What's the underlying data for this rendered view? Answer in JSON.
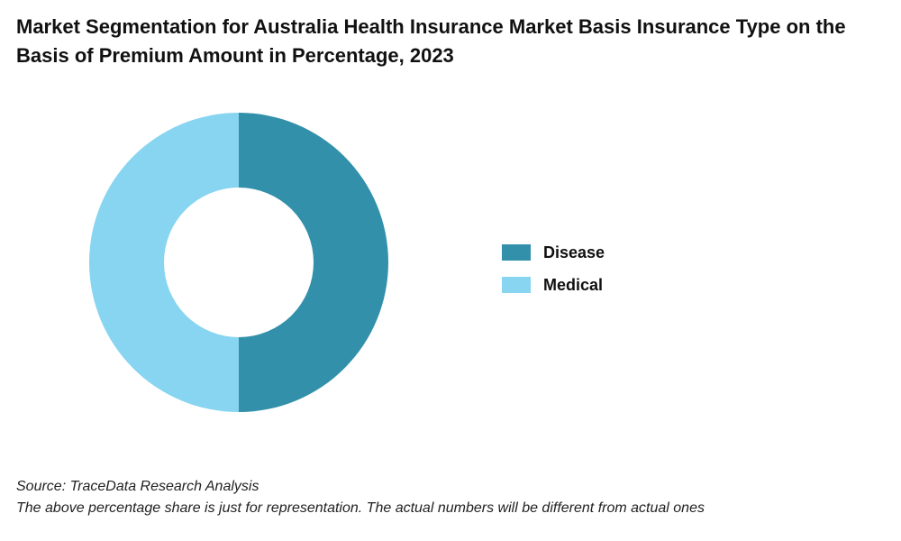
{
  "chart_data": {
    "type": "pie",
    "variant": "donut",
    "title": "Market Segmentation for Australia Health Insurance Market Basis Insurance Type on the Basis of Premium Amount in Percentage, 2023",
    "categories": [
      "Disease",
      "Medical"
    ],
    "values": [
      50,
      50
    ],
    "colors": [
      "#3290AA",
      "#87D5F0"
    ],
    "legend_position": "right"
  },
  "notes": {
    "source": "Source: TraceData Research Analysis",
    "disclaimer": "The above percentage share is just for representation. The actual numbers will be different from actual ones"
  }
}
